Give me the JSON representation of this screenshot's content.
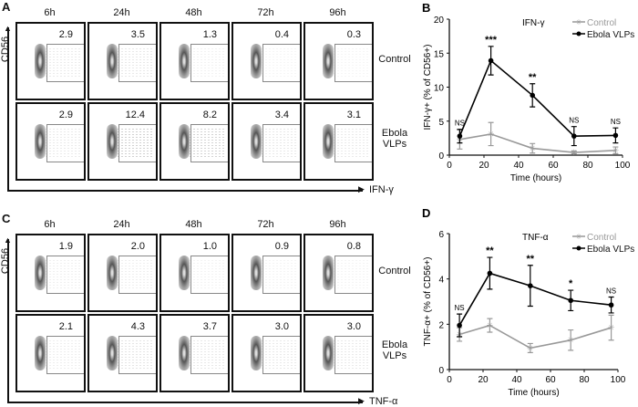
{
  "flow_panels": [
    {
      "label": "A",
      "y_axis": "CD56",
      "x_axis": "IFN-γ",
      "times": [
        "6h",
        "24h",
        "48h",
        "72h",
        "96h"
      ],
      "rows": [
        {
          "name": "Control",
          "values": [
            "2.9",
            "3.5",
            "1.3",
            "0.4",
            "0.3"
          ]
        },
        {
          "name": "Ebola VLPs",
          "values": [
            "2.9",
            "12.4",
            "8.2",
            "3.4",
            "3.1"
          ]
        }
      ]
    },
    {
      "label": "C",
      "y_axis": "CD56",
      "x_axis": "TNF-α",
      "times": [
        "6h",
        "24h",
        "48h",
        "72h",
        "96h"
      ],
      "rows": [
        {
          "name": "Control",
          "values": [
            "1.9",
            "2.0",
            "1.0",
            "0.9",
            "0.8"
          ]
        },
        {
          "name": "Ebola VLPs",
          "values": [
            "2.1",
            "4.3",
            "3.7",
            "3.0",
            "3.0"
          ]
        }
      ]
    }
  ],
  "chart_data": [
    {
      "panel": "B",
      "type": "line",
      "title": "IFN-γ",
      "xlabel": "Time (hours)",
      "ylabel": "IFN-γ+ (% of CD56+)",
      "xlim": [
        0,
        100
      ],
      "ylim": [
        0,
        20
      ],
      "xticks": [
        0,
        20,
        40,
        60,
        80,
        100
      ],
      "yticks": [
        0,
        5,
        10,
        15,
        20
      ],
      "legend": "top-right",
      "x": [
        6,
        24,
        48,
        72,
        96
      ],
      "series": [
        {
          "name": "Control",
          "color": "#999999",
          "marker": "x",
          "values": [
            2.3,
            3.1,
            1.0,
            0.4,
            0.7
          ],
          "errors": [
            1.4,
            1.7,
            0.7,
            0.2,
            0.5
          ]
        },
        {
          "name": "Ebola VLPs",
          "color": "#000000",
          "marker": "circle",
          "values": [
            2.8,
            13.9,
            8.8,
            2.8,
            2.9
          ],
          "errors": [
            1.0,
            2.1,
            1.7,
            1.4,
            1.1
          ]
        }
      ],
      "annotations": [
        "NS",
        "***",
        "**",
        "NS",
        "NS"
      ]
    },
    {
      "panel": "D",
      "type": "line",
      "title": "TNF-α",
      "xlabel": "Time (hours)",
      "ylabel": "TNF-α+ (% of CD56+)",
      "xlim": [
        0,
        100
      ],
      "ylim": [
        0,
        6
      ],
      "xticks": [
        0,
        20,
        40,
        60,
        80,
        100
      ],
      "yticks": [
        0,
        2,
        4,
        6
      ],
      "legend": "top-right",
      "x": [
        6,
        24,
        48,
        72,
        96
      ],
      "series": [
        {
          "name": "Control",
          "color": "#999999",
          "marker": "x",
          "values": [
            1.55,
            1.95,
            0.95,
            1.3,
            1.85
          ],
          "errors": [
            0.3,
            0.3,
            0.2,
            0.45,
            0.55
          ]
        },
        {
          "name": "Ebola VLPs",
          "color": "#000000",
          "marker": "circle",
          "values": [
            1.95,
            4.25,
            3.7,
            3.05,
            2.85
          ],
          "errors": [
            0.5,
            0.7,
            0.9,
            0.45,
            0.35
          ]
        }
      ],
      "annotations": [
        "NS",
        "**",
        "**",
        "*",
        "NS"
      ]
    }
  ]
}
